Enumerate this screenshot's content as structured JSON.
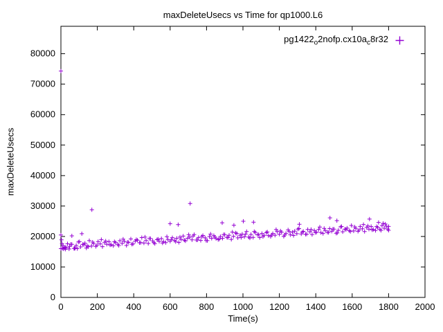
{
  "chart_data": {
    "type": "scatter",
    "title": "maxDeleteUsecs vs Time for qp1000.L6",
    "xlabel": "Time(s)",
    "ylabel": "maxDeleteUsecs",
    "xlim": [
      0,
      2000
    ],
    "ylim": [
      0,
      89000
    ],
    "xticks": [
      0,
      200,
      400,
      600,
      800,
      1000,
      1200,
      1400,
      1600,
      1800,
      2000
    ],
    "yticks": [
      0,
      10000,
      20000,
      30000,
      40000,
      50000,
      60000,
      70000,
      80000
    ],
    "grid": false,
    "legend": {
      "position": "top-right",
      "marker": "plus",
      "color": "#9400d3",
      "label_plain": "pg1422_o2nofp.cx10a_c8r32",
      "label_parts": [
        {
          "t": "pg1422"
        },
        {
          "t": "o",
          "sub": true
        },
        {
          "t": "2nofp.cx10a"
        },
        {
          "t": "c",
          "sub": true
        },
        {
          "t": "8r32"
        }
      ]
    },
    "series": [
      {
        "name": "pg1422_o2nofp.cx10a_c8r32",
        "marker": "plus",
        "color": "#9400d3",
        "points": [
          [
            0,
            16000
          ],
          [
            12,
            16990
          ],
          [
            24,
            16430
          ],
          [
            36,
            17620
          ],
          [
            48,
            16750
          ],
          [
            60,
            17430
          ],
          [
            72,
            16070
          ],
          [
            84,
            17050
          ],
          [
            96,
            18180
          ],
          [
            108,
            16570
          ],
          [
            120,
            17430
          ],
          [
            132,
            17800
          ],
          [
            144,
            16940
          ],
          [
            156,
            18640
          ],
          [
            168,
            16850
          ],
          [
            180,
            17680
          ],
          [
            192,
            16720
          ],
          [
            204,
            18330
          ],
          [
            216,
            17570
          ],
          [
            228,
            16670
          ],
          [
            240,
            17990
          ],
          [
            252,
            17410
          ],
          [
            264,
            18310
          ],
          [
            276,
            17320
          ],
          [
            288,
            16990
          ],
          [
            300,
            17990
          ],
          [
            312,
            17430
          ],
          [
            324,
            18620
          ],
          [
            336,
            17740
          ],
          [
            348,
            18420
          ],
          [
            360,
            17060
          ],
          [
            372,
            18040
          ],
          [
            384,
            19180
          ],
          [
            396,
            17570
          ],
          [
            408,
            18430
          ],
          [
            420,
            18790
          ],
          [
            432,
            17930
          ],
          [
            444,
            19630
          ],
          [
            456,
            17840
          ],
          [
            468,
            18680
          ],
          [
            480,
            17720
          ],
          [
            492,
            19330
          ],
          [
            504,
            18560
          ],
          [
            516,
            17660
          ],
          [
            528,
            18980
          ],
          [
            540,
            18400
          ],
          [
            552,
            19300
          ],
          [
            564,
            18320
          ],
          [
            576,
            17990
          ],
          [
            588,
            18980
          ],
          [
            600,
            18420
          ],
          [
            612,
            19610
          ],
          [
            624,
            18730
          ],
          [
            636,
            19410
          ],
          [
            648,
            18060
          ],
          [
            660,
            19040
          ],
          [
            672,
            20170
          ],
          [
            684,
            18560
          ],
          [
            696,
            19420
          ],
          [
            708,
            19780
          ],
          [
            720,
            18920
          ],
          [
            732,
            20630
          ],
          [
            744,
            18840
          ],
          [
            756,
            19670
          ],
          [
            768,
            18710
          ],
          [
            780,
            20320
          ],
          [
            792,
            19550
          ],
          [
            804,
            18650
          ],
          [
            816,
            19980
          ],
          [
            828,
            19400
          ],
          [
            840,
            20300
          ],
          [
            852,
            19310
          ],
          [
            864,
            18980
          ],
          [
            876,
            19970
          ],
          [
            888,
            19410
          ],
          [
            900,
            20610
          ],
          [
            912,
            19730
          ],
          [
            924,
            20410
          ],
          [
            936,
            19050
          ],
          [
            948,
            20030
          ],
          [
            960,
            21160
          ],
          [
            972,
            19550
          ],
          [
            984,
            20420
          ],
          [
            996,
            20780
          ],
          [
            1008,
            19920
          ],
          [
            1020,
            21620
          ],
          [
            1032,
            19830
          ],
          [
            1044,
            20660
          ],
          [
            1056,
            19700
          ],
          [
            1068,
            21320
          ],
          [
            1080,
            20550
          ],
          [
            1092,
            19650
          ],
          [
            1104,
            20970
          ],
          [
            1116,
            20390
          ],
          [
            1128,
            21290
          ],
          [
            1140,
            20300
          ],
          [
            1152,
            19970
          ],
          [
            1164,
            20970
          ],
          [
            1176,
            20410
          ],
          [
            1188,
            21600
          ],
          [
            1200,
            20720
          ],
          [
            1212,
            21400
          ],
          [
            1224,
            20040
          ],
          [
            1236,
            21020
          ],
          [
            1248,
            22160
          ],
          [
            1260,
            20550
          ],
          [
            1272,
            21410
          ],
          [
            1284,
            21770
          ],
          [
            1296,
            20910
          ],
          [
            1308,
            22610
          ],
          [
            1320,
            20820
          ],
          [
            1332,
            21660
          ],
          [
            1344,
            20700
          ],
          [
            1356,
            22310
          ],
          [
            1368,
            21540
          ],
          [
            1380,
            20640
          ],
          [
            1392,
            21960
          ],
          [
            1404,
            21380
          ],
          [
            1416,
            22290
          ],
          [
            1428,
            21300
          ],
          [
            1440,
            20970
          ],
          [
            1452,
            21960
          ],
          [
            1464,
            21400
          ],
          [
            1476,
            22590
          ],
          [
            1488,
            21710
          ],
          [
            1500,
            22400
          ],
          [
            1512,
            21040
          ],
          [
            1524,
            22020
          ],
          [
            1536,
            23150
          ],
          [
            1548,
            21540
          ],
          [
            1560,
            22400
          ],
          [
            1572,
            22760
          ],
          [
            1584,
            21910
          ],
          [
            1596,
            23610
          ],
          [
            1608,
            21820
          ],
          [
            1620,
            22650
          ],
          [
            1632,
            21690
          ],
          [
            1644,
            23300
          ],
          [
            1656,
            22530
          ],
          [
            1668,
            21640
          ],
          [
            1680,
            22960
          ],
          [
            1692,
            22380
          ],
          [
            1704,
            23280
          ],
          [
            1716,
            22290
          ],
          [
            1728,
            21960
          ],
          [
            1740,
            22950
          ],
          [
            1752,
            22390
          ],
          [
            1764,
            23590
          ],
          [
            1776,
            22710
          ],
          [
            1788,
            23390
          ],
          [
            1800,
            22030
          ],
          [
            6,
            17670
          ],
          [
            30,
            16350
          ],
          [
            54,
            17470
          ],
          [
            78,
            16190
          ],
          [
            102,
            18300
          ],
          [
            126,
            17310
          ],
          [
            150,
            16640
          ],
          [
            174,
            18160
          ],
          [
            198,
            17160
          ],
          [
            222,
            18970
          ],
          [
            246,
            18500
          ],
          [
            270,
            17180
          ],
          [
            294,
            18290
          ],
          [
            318,
            17020
          ],
          [
            342,
            19130
          ],
          [
            366,
            18140
          ],
          [
            390,
            17470
          ],
          [
            414,
            18990
          ],
          [
            438,
            17990
          ],
          [
            462,
            19790
          ],
          [
            486,
            19330
          ],
          [
            510,
            18010
          ],
          [
            534,
            19120
          ],
          [
            558,
            17850
          ],
          [
            582,
            19960
          ],
          [
            606,
            18970
          ],
          [
            630,
            18290
          ],
          [
            654,
            19820
          ],
          [
            678,
            18820
          ],
          [
            702,
            20620
          ],
          [
            726,
            20160
          ],
          [
            750,
            18840
          ],
          [
            774,
            19950
          ],
          [
            798,
            18670
          ],
          [
            822,
            20790
          ],
          [
            846,
            19800
          ],
          [
            870,
            19120
          ],
          [
            894,
            20640
          ],
          [
            918,
            19650
          ],
          [
            942,
            21450
          ],
          [
            966,
            20980
          ],
          [
            990,
            19670
          ],
          [
            1014,
            20780
          ],
          [
            1038,
            19500
          ],
          [
            1062,
            21610
          ],
          [
            1086,
            20630
          ],
          [
            1110,
            19950
          ],
          [
            1134,
            21470
          ],
          [
            1158,
            20480
          ],
          [
            1182,
            22280
          ],
          [
            1206,
            21810
          ],
          [
            1230,
            20490
          ],
          [
            1254,
            21610
          ],
          [
            1278,
            20330
          ],
          [
            1302,
            22440
          ],
          [
            1326,
            21460
          ],
          [
            1350,
            20780
          ],
          [
            1374,
            22300
          ],
          [
            1398,
            21300
          ],
          [
            1422,
            23110
          ],
          [
            1446,
            22640
          ],
          [
            1470,
            21320
          ],
          [
            1494,
            22430
          ],
          [
            1518,
            21160
          ],
          [
            1542,
            23270
          ],
          [
            1566,
            22280
          ],
          [
            1590,
            21610
          ],
          [
            1614,
            23130
          ],
          [
            1638,
            22130
          ],
          [
            1662,
            23930
          ],
          [
            1686,
            23470
          ],
          [
            1710,
            22150
          ],
          [
            1734,
            23260
          ],
          [
            1758,
            21990
          ],
          [
            1782,
            24100
          ],
          [
            0,
            74300
          ],
          [
            0,
            20500
          ],
          [
            3,
            18900
          ],
          [
            8,
            16100
          ],
          [
            15,
            15900
          ],
          [
            20,
            16300
          ],
          [
            25,
            15800
          ],
          [
            45,
            15900
          ],
          [
            60,
            20200
          ],
          [
            75,
            16100
          ],
          [
            90,
            16000
          ],
          [
            115,
            20900
          ],
          [
            140,
            16200
          ],
          [
            170,
            28800
          ],
          [
            600,
            24200
          ],
          [
            644,
            23900
          ],
          [
            710,
            30800
          ],
          [
            886,
            24500
          ],
          [
            950,
            23700
          ],
          [
            1002,
            25000
          ],
          [
            1058,
            24700
          ],
          [
            1310,
            24000
          ],
          [
            1478,
            26100
          ],
          [
            1516,
            25200
          ],
          [
            1695,
            25700
          ],
          [
            1745,
            24600
          ],
          [
            1770,
            24300
          ],
          [
            1795,
            22400
          ],
          [
            1800,
            23300
          ]
        ]
      }
    ]
  }
}
